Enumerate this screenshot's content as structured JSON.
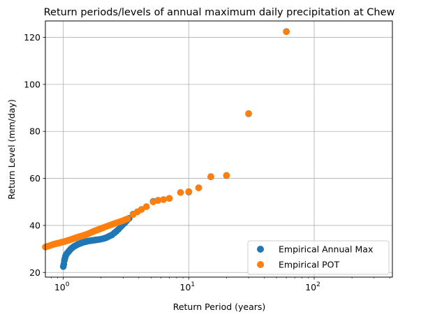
{
  "chart_data": {
    "type": "scatter",
    "title": "Return periods/levels of annual maximum daily precipitation at Chew",
    "xlabel": "Return Period (years)",
    "ylabel": "Return Level (mm/day)",
    "xscale": "log",
    "xlim": [
      0.72,
      420
    ],
    "ylim": [
      18,
      127
    ],
    "grid": true,
    "legend_position": "bottom-right",
    "x_tick_labels": [
      {
        "base": "10",
        "exp": "0",
        "value": 1
      },
      {
        "base": "10",
        "exp": "1",
        "value": 10
      },
      {
        "base": "10",
        "exp": "2",
        "value": 100
      }
    ],
    "y_ticks": [
      20,
      40,
      60,
      80,
      100,
      120
    ],
    "series": [
      {
        "name": "Empirical Annual Max",
        "color": "#1f77b4",
        "x": [
          1.0,
          1.01,
          1.02,
          1.03,
          1.04,
          1.05,
          1.06,
          1.08,
          1.1,
          1.12,
          1.14,
          1.16,
          1.18,
          1.2,
          1.22,
          1.25,
          1.28,
          1.31,
          1.34,
          1.37,
          1.4,
          1.44,
          1.48,
          1.52,
          1.56,
          1.6,
          1.65,
          1.7,
          1.75,
          1.8,
          1.86,
          1.92,
          1.98,
          2.05,
          2.12,
          2.2,
          2.28,
          2.36,
          2.45,
          2.55,
          2.65,
          2.75,
          2.86,
          2.97,
          3.08,
          3.2,
          3.35,
          3.6,
          3.9,
          4.2,
          4.6,
          5.2,
          5.7,
          6.3,
          7.0,
          8.6,
          10.0,
          12.0,
          15.0,
          20.0,
          30.0,
          60.0
        ],
        "y": [
          22.5,
          23.5,
          25.0,
          26.0,
          26.8,
          27.3,
          27.8,
          28.3,
          28.8,
          29.3,
          29.8,
          30.2,
          30.5,
          30.8,
          31.1,
          31.4,
          31.7,
          32.0,
          32.2,
          32.4,
          32.6,
          32.8,
          33.0,
          33.1,
          33.3,
          33.4,
          33.5,
          33.6,
          33.7,
          33.8,
          33.9,
          34.0,
          34.1,
          34.3,
          34.5,
          34.8,
          35.2,
          35.6,
          36.0,
          36.8,
          37.5,
          38.3,
          39.3,
          40.2,
          41.0,
          42.0,
          43.0,
          44.8,
          45.8,
          46.8,
          48.0,
          50.2,
          50.7,
          51.0,
          51.5,
          54.0,
          54.2,
          56.0,
          60.7,
          61.2,
          87.5,
          122.5
        ]
      },
      {
        "name": "Empirical POT",
        "color": "#ff7f0e",
        "x": [
          0.72,
          0.74,
          0.76,
          0.78,
          0.8,
          0.82,
          0.84,
          0.86,
          0.88,
          0.9,
          0.92,
          0.94,
          0.96,
          0.98,
          1.0,
          1.03,
          1.06,
          1.09,
          1.12,
          1.15,
          1.18,
          1.21,
          1.24,
          1.27,
          1.3,
          1.34,
          1.38,
          1.42,
          1.46,
          1.5,
          1.55,
          1.6,
          1.65,
          1.7,
          1.75,
          1.81,
          1.87,
          1.93,
          2.0,
          2.07,
          2.14,
          2.22,
          2.3,
          2.38,
          2.47,
          2.56,
          2.66,
          2.76,
          2.87,
          2.98,
          3.1,
          3.25,
          3.6,
          3.9,
          4.2,
          4.6,
          5.2,
          5.7,
          6.3,
          7.0,
          8.6,
          10.0,
          12.0,
          15.0,
          20.0,
          30.0,
          60.0
        ],
        "y": [
          30.8,
          31.0,
          31.2,
          31.4,
          31.6,
          31.8,
          32.0,
          32.1,
          32.3,
          32.4,
          32.5,
          32.6,
          32.8,
          32.9,
          33.0,
          33.2,
          33.4,
          33.6,
          33.8,
          34.0,
          34.2,
          34.4,
          34.6,
          34.8,
          35.0,
          35.2,
          35.4,
          35.6,
          35.8,
          36.0,
          36.3,
          36.6,
          36.9,
          37.2,
          37.5,
          37.8,
          38.1,
          38.4,
          38.7,
          39.0,
          39.3,
          39.6,
          39.9,
          40.2,
          40.5,
          40.8,
          41.1,
          41.4,
          41.7,
          42.0,
          42.4,
          42.8,
          44.6,
          45.8,
          46.8,
          48.0,
          50.0,
          50.6,
          51.0,
          51.5,
          54.0,
          54.4,
          56.0,
          60.8,
          61.3,
          87.6,
          122.4
        ]
      }
    ]
  }
}
